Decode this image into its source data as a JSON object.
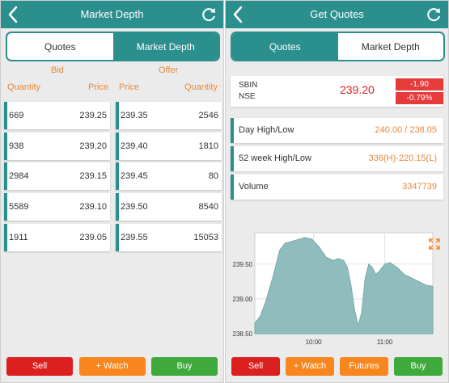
{
  "left": {
    "title": "Market Depth",
    "tabs": [
      "Quotes",
      "Market Depth"
    ],
    "active_tab": "Market Depth",
    "bid_label": "Bid",
    "offer_label": "Offer",
    "columns": {
      "bid_qty": "Quantity",
      "bid_price": "Price",
      "offer_price": "Price",
      "offer_qty": "Quantity"
    },
    "bids": [
      {
        "qty": "669",
        "price": "239.25"
      },
      {
        "qty": "938",
        "price": "239.20"
      },
      {
        "qty": "2984",
        "price": "239.15"
      },
      {
        "qty": "5589",
        "price": "239.10"
      },
      {
        "qty": "1911",
        "price": "239.05"
      }
    ],
    "offers": [
      {
        "price": "239.35",
        "qty": "2546"
      },
      {
        "price": "239.40",
        "qty": "1810"
      },
      {
        "price": "239.45",
        "qty": "80"
      },
      {
        "price": "239.50",
        "qty": "8540"
      },
      {
        "price": "239.55",
        "qty": "15053"
      }
    ],
    "buttons": {
      "sell": "Sell",
      "watch": "+ Watch",
      "buy": "Buy"
    }
  },
  "right": {
    "title": "Get Quotes",
    "tabs": [
      "Quotes",
      "Market Depth"
    ],
    "active_tab": "Quotes",
    "symbol": "SBIN",
    "exchange": "NSE",
    "ltp": "239.20",
    "change": "-1.90",
    "change_pct": "-0.79%",
    "stats": [
      {
        "label": "Day High/Low",
        "value": "240.00 / 238.05"
      },
      {
        "label": "52 week High/Low",
        "value": "336(H)-220.15(L)"
      },
      {
        "label": "Volume",
        "value": "3347739"
      }
    ],
    "buttons": {
      "sell": "Sell",
      "watch": "+ Watch",
      "futures": "Futures",
      "buy": "Buy"
    }
  },
  "colors": {
    "teal": "#2b8f8e",
    "orange": "#e8883a",
    "red": "#dc1f1f",
    "green": "#3fa93c",
    "area_fill": "#8fbcbc"
  },
  "chart_data": {
    "type": "area",
    "ytick_labels": [
      "239.50",
      "239.00",
      "238.50"
    ],
    "xtick_labels": [
      "10:00",
      "11:00"
    ],
    "ylim": [
      238.5,
      239.95
    ],
    "xlim": [
      0,
      100
    ],
    "grid": true,
    "series": [
      {
        "x": [
          0,
          3,
          6,
          10,
          14,
          17,
          20,
          24,
          28,
          32,
          36,
          40,
          44,
          47,
          50,
          52,
          54,
          56,
          58,
          60,
          62,
          64,
          66,
          68,
          70,
          73,
          76,
          80,
          84,
          88,
          92,
          96,
          100
        ],
        "values": [
          238.65,
          238.75,
          238.95,
          239.3,
          239.7,
          239.8,
          239.82,
          239.85,
          239.88,
          239.86,
          239.75,
          239.6,
          239.55,
          239.58,
          239.55,
          239.45,
          239.2,
          238.85,
          238.62,
          238.8,
          239.3,
          239.5,
          239.45,
          239.35,
          239.4,
          239.5,
          239.52,
          239.45,
          239.35,
          239.3,
          239.25,
          239.2,
          239.18
        ]
      }
    ]
  }
}
